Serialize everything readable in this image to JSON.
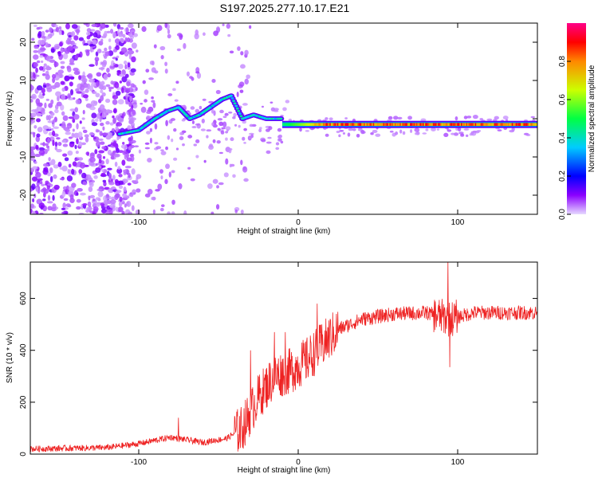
{
  "title": "S197.2025.277.10.17.E21",
  "chart_data": [
    {
      "type": "heatmap",
      "title": "S197.2025.277.10.17.E21",
      "xlabel": "Height of straight line (km)",
      "ylabel": "Frequency (Hz)",
      "xlim": [
        -168,
        150
      ],
      "ylim": [
        -25,
        25
      ],
      "xticks": [
        "-100",
        "0",
        "100"
      ],
      "yticks": [
        "-20",
        "-10",
        "0",
        "10",
        "20"
      ],
      "colorbar": {
        "label": "Normalized spectral amplitude",
        "range": [
          0,
          1
        ],
        "ticks": [
          "0.0",
          "0.2",
          "0.4",
          "0.6",
          "0.8"
        ]
      },
      "features": [
        {
          "name": "noise-region",
          "x_range": [
            -168,
            -110
          ],
          "y_range": [
            -25,
            25
          ]
        },
        {
          "name": "oscillating-segment",
          "points": [
            [
              -112,
              -4
            ],
            [
              -100,
              -3
            ],
            [
              -90,
              0
            ],
            [
              -82,
              2
            ],
            [
              -75,
              3
            ],
            [
              -68,
              0
            ],
            [
              -62,
              1
            ],
            [
              -55,
              3
            ],
            [
              -48,
              5
            ],
            [
              -42,
              6
            ],
            [
              -35,
              0
            ],
            [
              -28,
              1
            ],
            [
              -20,
              0
            ],
            [
              -10,
              0
            ]
          ]
        },
        {
          "name": "steady-line",
          "x_range": [
            -10,
            150
          ],
          "y": -1.5
        }
      ]
    },
    {
      "type": "line",
      "xlabel": "Height of straight line (km)",
      "ylabel": "SNR (10 * v/v)",
      "xlim": [
        -168,
        150
      ],
      "ylim": [
        0,
        740
      ],
      "xticks": [
        "-100",
        "0",
        "100"
      ],
      "yticks": [
        "0",
        "200",
        "400",
        "600"
      ],
      "series": [
        {
          "name": "SNR",
          "color": "#ee2222",
          "trend": [
            [
              -168,
              20
            ],
            [
              -120,
              25
            ],
            [
              -100,
              40
            ],
            [
              -80,
              65
            ],
            [
              -60,
              45
            ],
            [
              -45,
              60
            ],
            [
              -35,
              100
            ],
            [
              -25,
              220
            ],
            [
              -15,
              300
            ],
            [
              -5,
              320
            ],
            [
              5,
              360
            ],
            [
              15,
              420
            ],
            [
              25,
              480
            ],
            [
              40,
              520
            ],
            [
              60,
              540
            ],
            [
              80,
              545
            ],
            [
              90,
              530
            ],
            [
              95,
              520
            ],
            [
              110,
              545
            ],
            [
              150,
              545
            ]
          ],
          "spikes": [
            [
              -75,
              140
            ],
            [
              -30,
              400
            ],
            [
              -15,
              470
            ],
            [
              -8,
              470
            ],
            [
              12,
              580
            ],
            [
              94,
              740
            ],
            [
              95,
              335
            ]
          ]
        }
      ]
    }
  ]
}
